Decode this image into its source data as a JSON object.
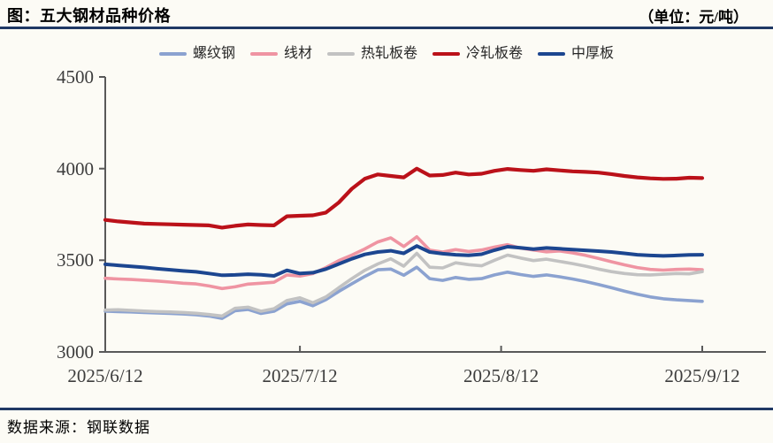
{
  "header": {
    "title": "图：五大钢材品种价格",
    "unit_label": "（单位：元/吨）"
  },
  "footer": {
    "source_label": "数据来源：钢联数据"
  },
  "colors": {
    "accent_rule": "#1F3864",
    "axis": "#595959",
    "tick_text": "#3D3D3D",
    "background": "#FCFBF5"
  },
  "chart_data": {
    "type": "line",
    "title": "五大钢材品种价格",
    "unit": "元/吨",
    "ylim": [
      3000,
      4500
    ],
    "y_ticks": [
      3000,
      3500,
      4000,
      4500
    ],
    "x_tick_labels": [
      "2025/6/12",
      "2025/7/12",
      "2025/8/12",
      "2025/9/12"
    ],
    "x_tick_days": [
      0,
      30,
      61,
      92
    ],
    "days_per_point": 2,
    "grid": false,
    "legend_position": "top",
    "series": [
      {
        "name": "螺纹钢",
        "color": "#8BA2D0",
        "width": 3.6,
        "values": [
          3222,
          3220,
          3218,
          3215,
          3212,
          3210,
          3207,
          3203,
          3196,
          3183,
          3225,
          3232,
          3210,
          3222,
          3262,
          3276,
          3252,
          3285,
          3330,
          3372,
          3412,
          3448,
          3452,
          3418,
          3462,
          3400,
          3390,
          3406,
          3396,
          3400,
          3420,
          3435,
          3422,
          3412,
          3420,
          3410,
          3398,
          3384,
          3368,
          3350,
          3332,
          3315,
          3300,
          3290,
          3284,
          3280,
          3276
        ]
      },
      {
        "name": "线材",
        "color": "#EF94A2",
        "width": 3.6,
        "values": [
          3402,
          3398,
          3395,
          3391,
          3387,
          3381,
          3375,
          3371,
          3360,
          3346,
          3355,
          3370,
          3375,
          3380,
          3420,
          3414,
          3428,
          3460,
          3498,
          3528,
          3562,
          3600,
          3622,
          3575,
          3628,
          3555,
          3545,
          3558,
          3548,
          3556,
          3572,
          3585,
          3566,
          3556,
          3546,
          3551,
          3540,
          3527,
          3510,
          3492,
          3475,
          3460,
          3450,
          3446,
          3450,
          3452,
          3448
        ]
      },
      {
        "name": "热轧板卷",
        "color": "#C2C2C2",
        "width": 3.6,
        "values": [
          3228,
          3230,
          3226,
          3223,
          3220,
          3218,
          3215,
          3211,
          3204,
          3196,
          3238,
          3244,
          3222,
          3236,
          3280,
          3295,
          3268,
          3300,
          3350,
          3400,
          3445,
          3480,
          3508,
          3468,
          3538,
          3462,
          3458,
          3486,
          3476,
          3470,
          3500,
          3528,
          3512,
          3498,
          3506,
          3494,
          3482,
          3468,
          3452,
          3438,
          3428,
          3421,
          3420,
          3424,
          3428,
          3426,
          3438
        ]
      },
      {
        "name": "冷轧板卷",
        "color": "#BB1119",
        "width": 4.2,
        "values": [
          3720,
          3712,
          3706,
          3700,
          3698,
          3696,
          3694,
          3692,
          3690,
          3678,
          3688,
          3695,
          3692,
          3690,
          3740,
          3743,
          3745,
          3760,
          3815,
          3890,
          3945,
          3968,
          3960,
          3952,
          4000,
          3962,
          3965,
          3978,
          3968,
          3972,
          3988,
          3998,
          3992,
          3988,
          3996,
          3990,
          3985,
          3982,
          3978,
          3970,
          3960,
          3952,
          3947,
          3944,
          3945,
          3950,
          3948
        ]
      },
      {
        "name": "中厚板",
        "color": "#1C4690",
        "width": 4.0,
        "values": [
          3478,
          3472,
          3467,
          3461,
          3454,
          3448,
          3442,
          3437,
          3428,
          3418,
          3420,
          3424,
          3421,
          3415,
          3445,
          3428,
          3432,
          3452,
          3480,
          3508,
          3532,
          3545,
          3552,
          3538,
          3578,
          3545,
          3536,
          3530,
          3527,
          3533,
          3555,
          3574,
          3568,
          3561,
          3567,
          3563,
          3558,
          3554,
          3550,
          3545,
          3538,
          3530,
          3526,
          3524,
          3526,
          3529,
          3530
        ]
      }
    ]
  }
}
